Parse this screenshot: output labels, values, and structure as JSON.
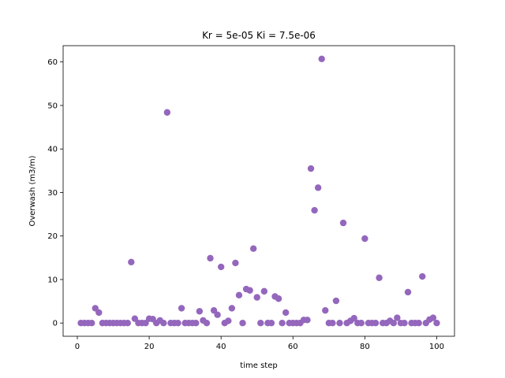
{
  "chart_data": {
    "type": "scatter",
    "title": "Kr = 5e-05 Ki = 7.5e-06",
    "xlabel": "time step",
    "ylabel": "Overwash (m3/m)",
    "xlim": [
      -3.95,
      104.95
    ],
    "ylim": [
      -3.04,
      63.74
    ],
    "xticks": [
      0,
      20,
      40,
      60,
      80,
      100
    ],
    "yticks": [
      0,
      10,
      20,
      30,
      40,
      50,
      60
    ],
    "grid": false,
    "marker_color": "#9467bd",
    "x": [
      1,
      2,
      3,
      4,
      5,
      6,
      7,
      8,
      9,
      10,
      11,
      12,
      13,
      14,
      15,
      16,
      17,
      18,
      19,
      20,
      21,
      22,
      23,
      24,
      25,
      26,
      27,
      28,
      29,
      30,
      31,
      32,
      33,
      34,
      35,
      36,
      37,
      38,
      39,
      40,
      41,
      42,
      43,
      44,
      45,
      46,
      47,
      48,
      49,
      50,
      51,
      52,
      53,
      54,
      55,
      56,
      57,
      58,
      59,
      60,
      61,
      62,
      63,
      64,
      65,
      66,
      67,
      68,
      69,
      70,
      71,
      72,
      73,
      74,
      75,
      76,
      77,
      78,
      79,
      80,
      81,
      82,
      83,
      84,
      85,
      86,
      87,
      88,
      89,
      90,
      91,
      92,
      93,
      94,
      95,
      96,
      97,
      98,
      99,
      100
    ],
    "y": [
      0,
      0,
      0,
      0,
      3.4,
      2.4,
      0,
      0,
      0,
      0,
      0,
      0,
      0,
      0,
      14,
      1,
      0,
      0,
      0,
      1,
      0.9,
      0,
      0.6,
      0,
      48.4,
      0,
      0,
      0,
      3.4,
      0,
      0,
      0,
      0,
      2.7,
      0.6,
      0,
      14.9,
      2.9,
      1.9,
      12.9,
      0,
      0.5,
      3.4,
      13.8,
      6.4,
      0,
      7.8,
      7.5,
      17.1,
      5.9,
      0,
      7.3,
      0,
      0,
      6.1,
      5.6,
      0,
      2.4,
      0,
      0,
      0,
      0,
      0.7,
      0.7,
      35.5,
      25.9,
      31.1,
      60.7,
      2.9,
      0,
      0,
      5.1,
      0,
      23,
      0,
      0.5,
      1.1,
      0,
      0,
      19.4,
      0,
      0,
      0,
      10.4,
      0,
      0,
      0.5,
      0,
      1.2,
      0,
      0,
      7.1,
      0,
      0,
      0,
      10.7,
      0,
      0.8,
      1.2,
      0
    ]
  }
}
